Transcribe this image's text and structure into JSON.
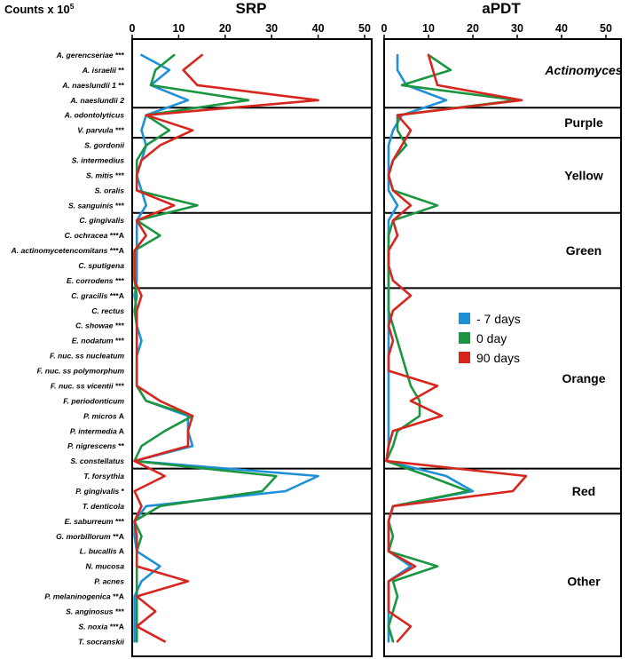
{
  "chart_data": {
    "type": "line",
    "ylabel": "Counts x 10",
    "ylabel_superscript": "5",
    "xlim": [
      0,
      52
    ],
    "ticks": [
      0,
      10,
      20,
      30,
      40,
      50
    ],
    "species": [
      {
        "name": "A. gerencseriae",
        "mark": "***"
      },
      {
        "name": "A. israelii",
        "mark": "**"
      },
      {
        "name": "A. naeslundii 1",
        "mark": "**"
      },
      {
        "name": "A. naeslundii 2",
        "mark": ""
      },
      {
        "name": "A. odontolyticus",
        "mark": ""
      },
      {
        "name": "V. parvula",
        "mark": "***"
      },
      {
        "name": "S. gordonii",
        "mark": ""
      },
      {
        "name": "S. intermedius",
        "mark": ""
      },
      {
        "name": "S. mitis",
        "mark": "***"
      },
      {
        "name": "S. oralis",
        "mark": ""
      },
      {
        "name": "S. sanguinis",
        "mark": "***"
      },
      {
        "name": "C. gingivalis",
        "mark": ""
      },
      {
        "name": "C. ochracea",
        "mark": "***A"
      },
      {
        "name": "A. actinomycetencomitans",
        "mark": "***A"
      },
      {
        "name": "C. sputigena",
        "mark": ""
      },
      {
        "name": "E. corrodens",
        "mark": "***"
      },
      {
        "name": "C. gracilis",
        "mark": "***A"
      },
      {
        "name": "C. rectus",
        "mark": ""
      },
      {
        "name": "C. showae",
        "mark": "***"
      },
      {
        "name": "E. nodatum",
        "mark": "***"
      },
      {
        "name": "F. nuc. ss nucleatum",
        "mark": ""
      },
      {
        "name": "F. nuc. ss polymorphum",
        "mark": ""
      },
      {
        "name": "F. nuc. ss vicentii",
        "mark": "***"
      },
      {
        "name": "F. periodonticum",
        "mark": ""
      },
      {
        "name": "P. micros",
        "mark": "A"
      },
      {
        "name": "P. intermedia",
        "mark": "A"
      },
      {
        "name": "P. nigrescens",
        "mark": "**"
      },
      {
        "name": "S. constellatus",
        "mark": ""
      },
      {
        "name": "T. forsythia",
        "mark": ""
      },
      {
        "name": "P. gingivalis",
        "mark": "*"
      },
      {
        "name": "T. denticola",
        "mark": ""
      },
      {
        "name": "E. saburreum",
        "mark": "***"
      },
      {
        "name": "G. morbillorum",
        "mark": "**A"
      },
      {
        "name": "L. bucallis",
        "mark": "A"
      },
      {
        "name": "N. mucosa",
        "mark": ""
      },
      {
        "name": "P. acnes",
        "mark": ""
      },
      {
        "name": "P. melaninogenica",
        "mark": "**A"
      },
      {
        "name": "S. anginosus",
        "mark": "***"
      },
      {
        "name": "S. noxia",
        "mark": "***A"
      },
      {
        "name": "T. socranskii",
        "mark": ""
      }
    ],
    "groups": [
      {
        "label": "Actinomyces",
        "italic": true,
        "start": 0,
        "end": 3
      },
      {
        "label": "Purple",
        "italic": false,
        "start": 4,
        "end": 5
      },
      {
        "label": "Yellow",
        "italic": false,
        "start": 6,
        "end": 10
      },
      {
        "label": "Green",
        "italic": false,
        "start": 11,
        "end": 15
      },
      {
        "label": "Orange",
        "italic": false,
        "start": 16,
        "end": 27
      },
      {
        "label": "Red",
        "italic": false,
        "start": 28,
        "end": 30
      },
      {
        "label": "Other",
        "italic": false,
        "start": 31,
        "end": 39
      }
    ],
    "legend": [
      {
        "label": "- 7 days",
        "color": "#1e90d8"
      },
      {
        "label": "0 day",
        "color": "#1a9641"
      },
      {
        "label": "90 days",
        "color": "#d7261e"
      }
    ],
    "panels": [
      {
        "title": "SRP",
        "series": [
          {
            "name": "- 7 days",
            "color": "#1e90d8",
            "values": [
              2,
              8,
              4,
              12,
              3,
              2,
              3,
              2,
              1,
              2,
              3,
              1,
              1,
              1,
              1,
              1,
              0.5,
              1,
              1,
              2,
              1,
              1,
              1,
              3,
              12,
              12,
              13,
              0.5,
              40,
              33,
              3,
              0.5,
              0.5,
              1,
              6,
              2,
              0.5,
              0.5,
              0.5,
              0.5
            ]
          },
          {
            "name": "0 day",
            "color": "#1a9641",
            "values": [
              9,
              5,
              4,
              25,
              3,
              8,
              3,
              1,
              1,
              1,
              14,
              1,
              6,
              0.5,
              0.5,
              0.5,
              1,
              0.5,
              1,
              1,
              1,
              1,
              1,
              3,
              13,
              7,
              2,
              0.5,
              31,
              28,
              6,
              0.5,
              2,
              1,
              1,
              1,
              1,
              1,
              1,
              1
            ]
          },
          {
            "name": "90 days",
            "color": "#d7261e",
            "values": [
              15,
              11,
              14,
              40,
              3,
              13,
              6,
              2,
              1,
              1,
              9,
              1,
              3,
              0.5,
              0.5,
              0.5,
              2,
              1,
              1,
              1,
              1,
              1,
              1,
              6,
              13,
              12,
              12,
              0.5,
              7,
              0.5,
              2,
              0.5,
              1,
              1,
              1,
              12,
              1,
              5,
              1,
              7
            ]
          }
        ]
      },
      {
        "title": "aPDT",
        "series": [
          {
            "name": "- 7 days",
            "color": "#1e90d8",
            "values": [
              3,
              3,
              5,
              14,
              4,
              2,
              1,
              1,
              1,
              1,
              3,
              1,
              1,
              1,
              1,
              1,
              1,
              1,
              1,
              1,
              1,
              1,
              1,
              1,
              1,
              1,
              1,
              0.5,
              14,
              20,
              2,
              1,
              1,
              1,
              6,
              1,
              1,
              1,
              1,
              1
            ]
          },
          {
            "name": "0 day",
            "color": "#1a9641",
            "values": [
              10,
              15,
              4,
              30,
              3,
              3,
              5,
              2,
              1,
              2,
              12,
              2,
              1,
              1,
              1,
              1,
              1,
              1,
              2,
              3,
              4,
              5,
              6,
              8,
              8,
              3,
              2,
              0.5,
              10,
              19,
              2,
              1,
              2,
              1,
              12,
              2,
              3,
              2,
              1,
              2
            ]
          },
          {
            "name": "90 days",
            "color": "#d7261e",
            "values": [
              10,
              11,
              12,
              31,
              3,
              6,
              4,
              2,
              1,
              2,
              6,
              2,
              3,
              1,
              1,
              2,
              6,
              2,
              1,
              2,
              1,
              1,
              12,
              6,
              13,
              2,
              1,
              0.5,
              32,
              29,
              2,
              1,
              1,
              1,
              7,
              1,
              1,
              1,
              6,
              3
            ]
          }
        ]
      }
    ]
  }
}
